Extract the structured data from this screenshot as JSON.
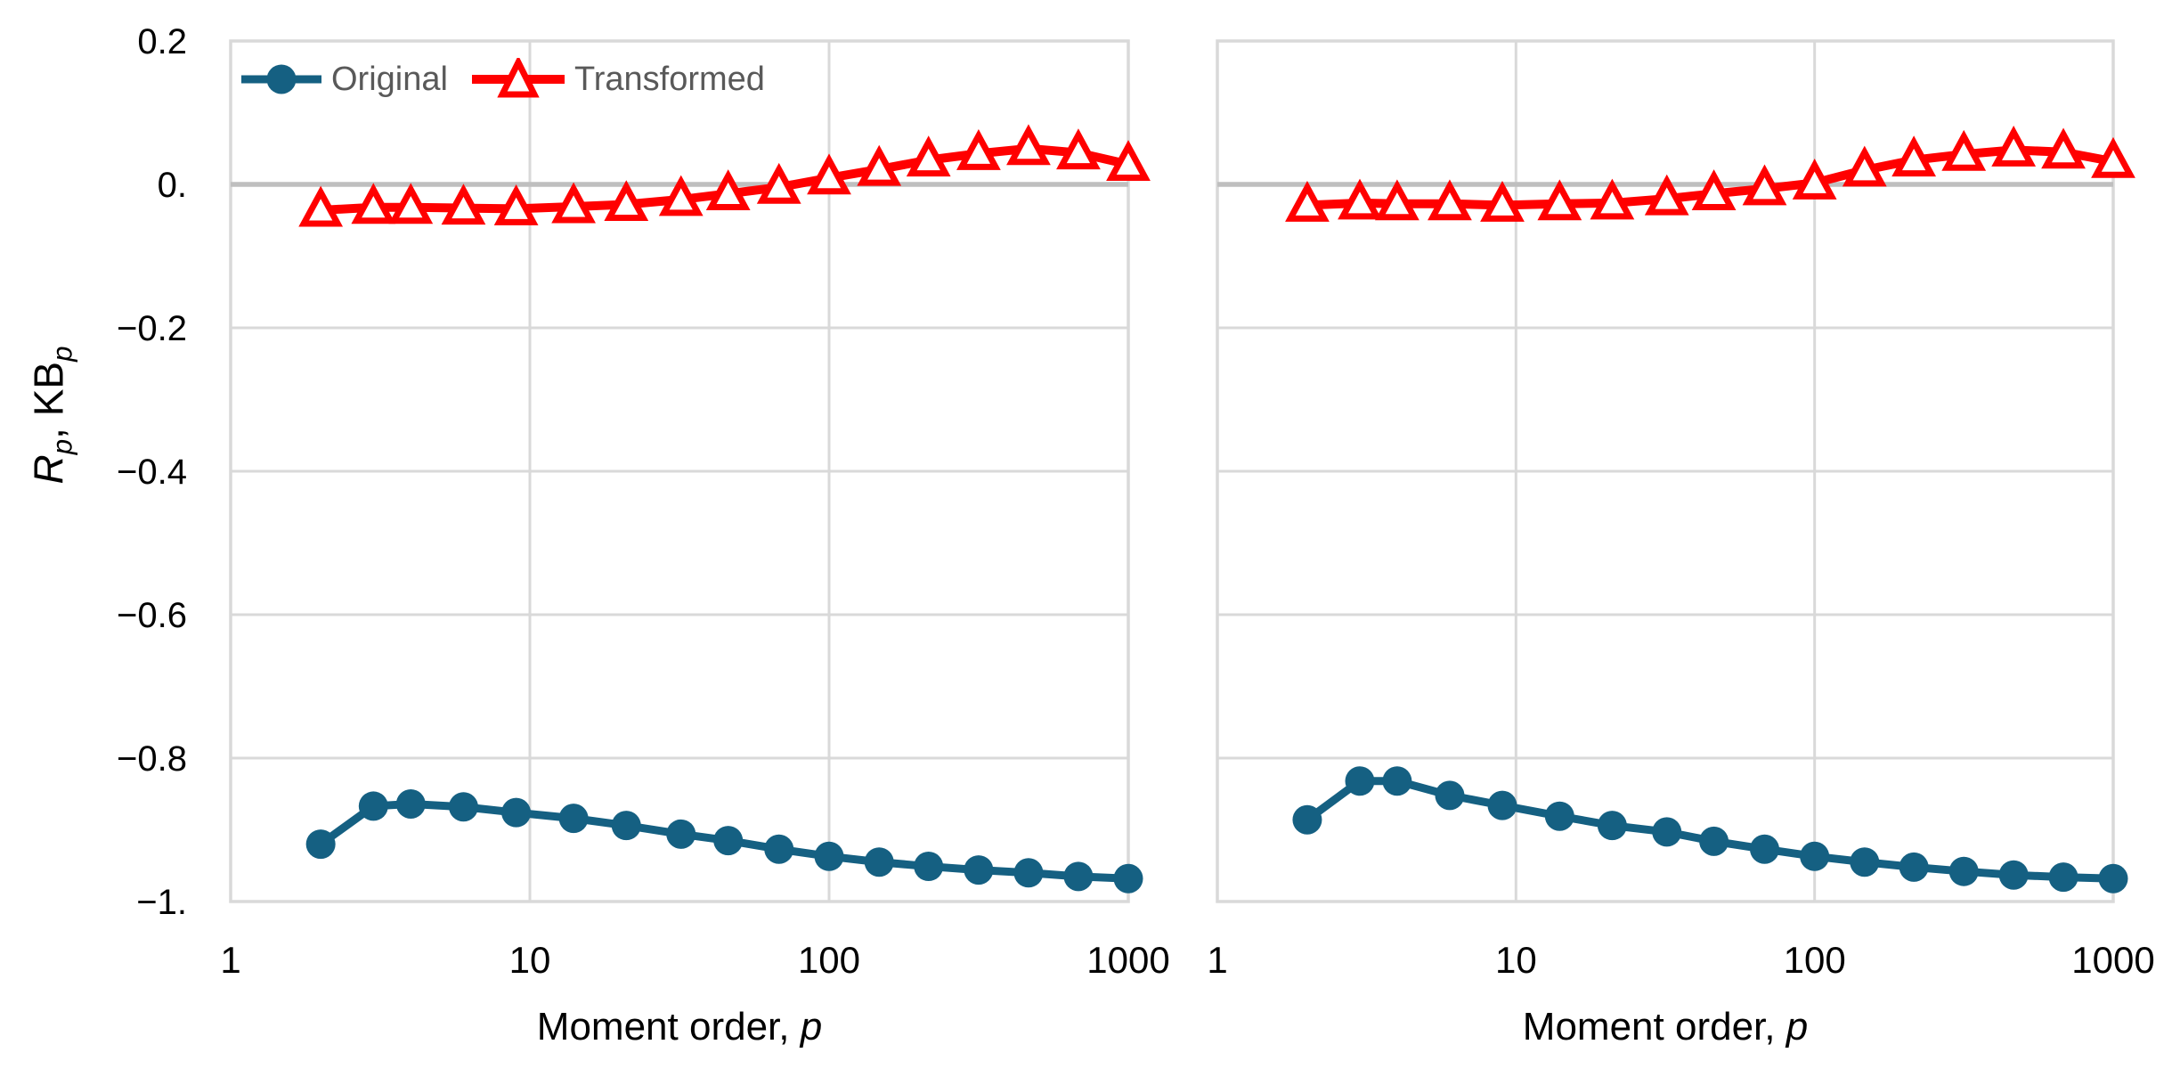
{
  "colors": {
    "original": "#156082",
    "transformed": "#FF0000",
    "gridline": "#D9D9D9",
    "zero_line": "#BFBFBF",
    "tick_text": "#000000",
    "legend_text": "#595959",
    "marker_fill_open": "#FFFFFF",
    "background": "#FFFFFF"
  },
  "legend": {
    "original_label": "Original",
    "transformed_label": "Transformed"
  },
  "axes": {
    "x_title_prefix": "Moment order, ",
    "x_title_var": "p",
    "y_title_R": "R",
    "y_title_sub1": "p",
    "y_title_mid": ", KB",
    "y_title_sub2": "p"
  },
  "chart_data": [
    {
      "type": "line",
      "panel": "left",
      "x_scale": "log",
      "xlim": [
        1,
        1000
      ],
      "ylim": [
        -1.0,
        0.2
      ],
      "grid": true,
      "legend_position": "top-left-inside",
      "x_ticks": [
        1,
        10,
        100,
        1000
      ],
      "x_tick_labels": [
        "1",
        "10",
        "100",
        "1000"
      ],
      "y_ticks": [
        0.2,
        0,
        -0.2,
        -0.4,
        -0.6,
        -0.8,
        -1.0
      ],
      "y_tick_labels": [
        "0.2",
        "0.",
        "−0.2",
        "−0.4",
        "−0.6",
        "−0.8",
        "−1."
      ],
      "x": [
        2,
        3,
        4,
        6,
        9,
        14,
        21,
        32,
        46,
        68,
        100,
        147,
        215,
        316,
        464,
        681,
        1000
      ],
      "series": [
        {
          "name": "Original",
          "marker": "circle",
          "values": [
            -0.92,
            -0.867,
            -0.864,
            -0.868,
            -0.876,
            -0.884,
            -0.894,
            -0.906,
            -0.915,
            -0.927,
            -0.937,
            -0.945,
            -0.951,
            -0.956,
            -0.96,
            -0.965,
            -0.968
          ]
        },
        {
          "name": "Transformed",
          "marker": "triangle-open",
          "values": [
            -0.036,
            -0.032,
            -0.032,
            -0.033,
            -0.034,
            -0.031,
            -0.028,
            -0.021,
            -0.013,
            -0.004,
            0.009,
            0.021,
            0.034,
            0.043,
            0.05,
            0.044,
            0.028
          ]
        }
      ]
    },
    {
      "type": "line",
      "panel": "right",
      "x_scale": "log",
      "xlim": [
        1,
        1000
      ],
      "ylim": [
        -1.0,
        0.2
      ],
      "grid": true,
      "legend_position": "none",
      "x_ticks": [
        1,
        10,
        100,
        1000
      ],
      "x_tick_labels": [
        "1",
        "10",
        "100",
        "1000"
      ],
      "y_ticks": [
        0.2,
        0,
        -0.2,
        -0.4,
        -0.6,
        -0.8,
        -1.0
      ],
      "y_tick_labels": [],
      "x": [
        2,
        3,
        4,
        6,
        9,
        14,
        21,
        32,
        46,
        68,
        100,
        147,
        215,
        316,
        464,
        681,
        1000
      ],
      "series": [
        {
          "name": "Original",
          "marker": "circle",
          "values": [
            -0.886,
            -0.832,
            -0.832,
            -0.852,
            -0.866,
            -0.881,
            -0.894,
            -0.903,
            -0.916,
            -0.927,
            -0.937,
            -0.945,
            -0.952,
            -0.958,
            -0.963,
            -0.966,
            -0.968
          ]
        },
        {
          "name": "Transformed",
          "marker": "triangle-open",
          "values": [
            -0.029,
            -0.026,
            -0.027,
            -0.027,
            -0.029,
            -0.027,
            -0.026,
            -0.02,
            -0.013,
            -0.006,
            0.002,
            0.02,
            0.034,
            0.042,
            0.048,
            0.045,
            0.032
          ]
        }
      ]
    }
  ]
}
